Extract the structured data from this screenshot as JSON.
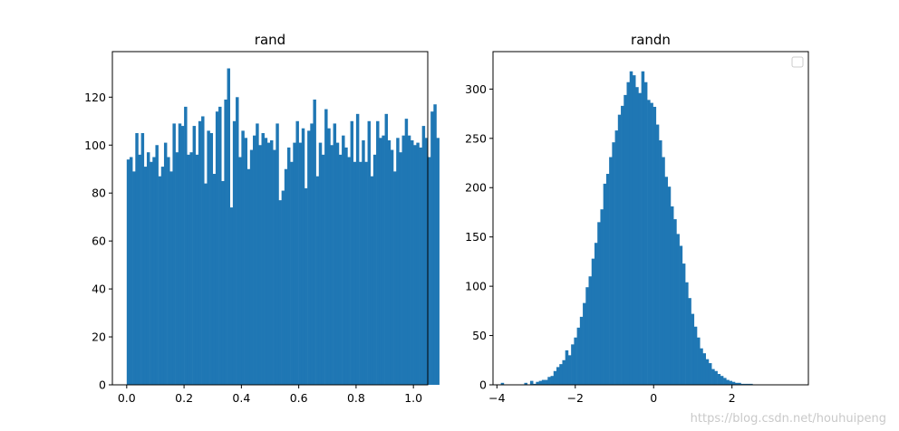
{
  "chart_data": [
    {
      "type": "bar",
      "title": "rand",
      "xlabel": "",
      "ylabel": "",
      "bar_color": "#1f77b4",
      "xlim": [
        -0.05,
        1.05
      ],
      "ylim": [
        0,
        139
      ],
      "xticks": [
        0.0,
        0.2,
        0.4,
        0.6,
        0.8,
        1.0
      ],
      "xtick_labels": [
        "0.0",
        "0.2",
        "0.4",
        "0.6",
        "0.8",
        "1.0"
      ],
      "yticks": [
        0,
        20,
        40,
        60,
        80,
        100,
        120
      ],
      "ytick_labels": [
        "0",
        "20",
        "40",
        "60",
        "80",
        "100",
        "120"
      ],
      "bin_start": 0.0,
      "bin_width": 0.01,
      "values": [
        94,
        95,
        89,
        105,
        96,
        105,
        91,
        97,
        93,
        95,
        100,
        87,
        91,
        101,
        95,
        89,
        109,
        97,
        109,
        108,
        116,
        96,
        97,
        108,
        96,
        110,
        112,
        84,
        106,
        105,
        88,
        114,
        116,
        85,
        119,
        132,
        74,
        110,
        120,
        95,
        106,
        103,
        90,
        98,
        104,
        109,
        100,
        105,
        103,
        101,
        102,
        98,
        109,
        77,
        81,
        90,
        99,
        93,
        101,
        110,
        101,
        107,
        82,
        106,
        109,
        119,
        87,
        101,
        96,
        115,
        107,
        100,
        109,
        101,
        96,
        104,
        99,
        95,
        110,
        93,
        113,
        93,
        102,
        93,
        110,
        87,
        96,
        110,
        103,
        104,
        113,
        102,
        98,
        89,
        103,
        97,
        104,
        111,
        104,
        102,
        100,
        101,
        99,
        108,
        103,
        95,
        114,
        117,
        103
      ]
    },
    {
      "type": "bar",
      "title": "randn",
      "xlabel": "",
      "ylabel": "",
      "bar_color": "#1f77b4",
      "xlim": [
        -4.1,
        3.95
      ],
      "ylim": [
        0,
        338
      ],
      "xticks": [
        -4,
        -2,
        0,
        2
      ],
      "xtick_labels": [
        "−4",
        "−2",
        "0",
        "2"
      ],
      "yticks": [
        0,
        50,
        100,
        150,
        200,
        250,
        300
      ],
      "ytick_labels": [
        "0",
        "50",
        "100",
        "150",
        "200",
        "250",
        "300"
      ],
      "legend": "top-right (empty)",
      "bin_start": -3.9,
      "bin_width": 0.0747,
      "values": [
        2,
        0,
        0,
        0,
        0,
        0,
        0,
        0,
        2,
        0,
        4,
        1,
        3,
        4,
        5,
        5,
        8,
        9,
        14,
        18,
        21,
        25,
        35,
        30,
        41,
        48,
        58,
        69,
        83,
        99,
        110,
        128,
        144,
        165,
        178,
        204,
        214,
        231,
        246,
        258,
        274,
        283,
        294,
        307,
        318,
        314,
        302,
        296,
        318,
        307,
        289,
        286,
        282,
        264,
        248,
        231,
        211,
        201,
        181,
        168,
        153,
        141,
        123,
        104,
        88,
        72,
        59,
        48,
        37,
        32,
        26,
        22,
        16,
        14,
        11,
        9,
        7,
        5,
        4,
        3,
        2,
        2,
        1,
        1,
        1,
        1,
        0,
        0,
        0,
        0,
        0,
        0,
        0,
        0,
        0,
        0,
        0,
        0,
        0,
        0,
        0,
        0,
        0,
        0,
        0,
        0,
        0,
        0
      ]
    }
  ],
  "watermark": "https://blog.csdn.net/houhuipeng"
}
